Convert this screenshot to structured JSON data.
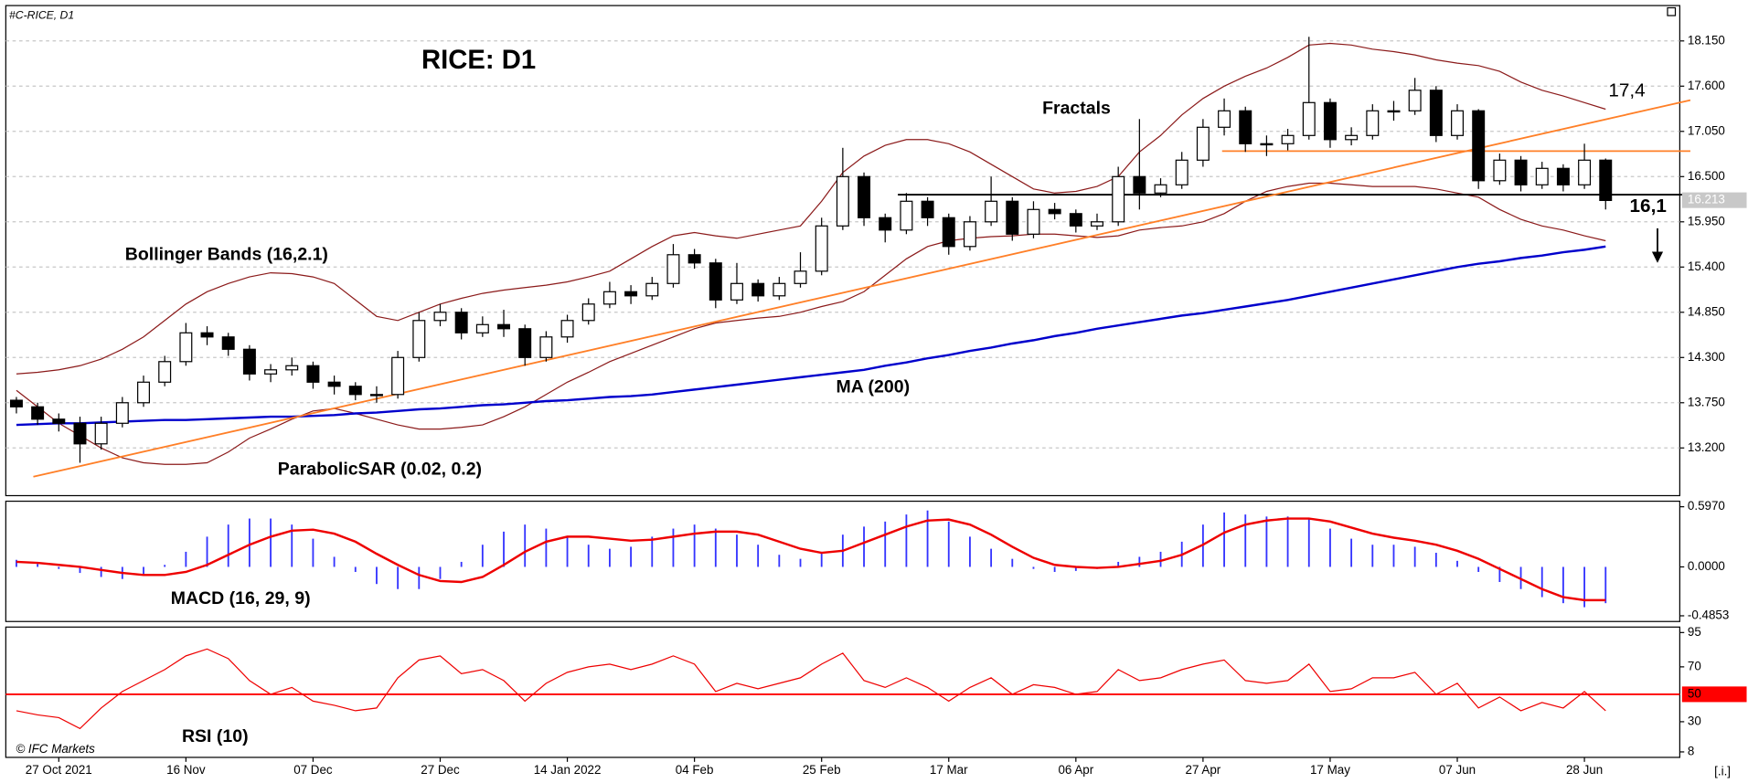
{
  "chart_data": [
    {
      "type": "candlestick",
      "subtitle": "#C-RICE, D1",
      "title": "RICE: D1",
      "categories": [
        null,
        null,
        "27 Oct 2021",
        null,
        null,
        null,
        null,
        null,
        "16 Nov",
        null,
        null,
        null,
        null,
        null,
        "07 Dec",
        null,
        null,
        null,
        null,
        null,
        "27 Dec",
        null,
        null,
        null,
        null,
        null,
        "14 Jan 2022",
        null,
        null,
        null,
        null,
        null,
        "04 Feb",
        null,
        null,
        null,
        null,
        null,
        "25 Feb",
        null,
        null,
        null,
        null,
        null,
        "17 Mar",
        null,
        null,
        null,
        null,
        null,
        "06 Apr",
        null,
        null,
        null,
        null,
        null,
        "27 Apr",
        null,
        null,
        null,
        null,
        null,
        "17 May",
        null,
        null,
        null,
        null,
        null,
        "07 Jun",
        null,
        null,
        null,
        null,
        null,
        "28 Jun",
        null
      ],
      "open": [
        13.78,
        13.7,
        13.55,
        13.5,
        13.25,
        13.5,
        13.75,
        14.0,
        14.25,
        14.6,
        14.55,
        14.4,
        14.1,
        14.15,
        14.2,
        14.0,
        13.95,
        13.85,
        13.85,
        14.3,
        14.75,
        14.85,
        14.6,
        14.7,
        14.65,
        14.3,
        14.55,
        14.75,
        14.95,
        15.1,
        15.05,
        15.2,
        15.55,
        15.45,
        15.0,
        15.2,
        15.05,
        15.2,
        15.35,
        15.9,
        16.5,
        16.0,
        15.85,
        16.2,
        16.0,
        15.65,
        15.95,
        16.2,
        15.8,
        16.1,
        16.05,
        15.9,
        15.95,
        16.5,
        16.3,
        16.4,
        16.7,
        17.1,
        17.3,
        16.9,
        16.9,
        17.0,
        17.4,
        16.95,
        17.0,
        17.3,
        17.3,
        17.55,
        17.0,
        17.3,
        16.45,
        16.7,
        16.4,
        16.6,
        16.4,
        16.7
      ],
      "high": [
        13.82,
        13.75,
        13.62,
        13.58,
        13.58,
        13.82,
        14.08,
        14.32,
        14.72,
        14.68,
        14.6,
        14.45,
        14.22,
        14.3,
        14.25,
        14.08,
        14.0,
        13.95,
        14.38,
        14.85,
        14.95,
        14.9,
        14.8,
        14.88,
        14.7,
        14.62,
        14.82,
        15.02,
        15.22,
        15.18,
        15.28,
        15.68,
        15.62,
        15.5,
        15.45,
        15.25,
        15.28,
        15.58,
        16.0,
        16.85,
        16.55,
        16.05,
        16.3,
        16.25,
        16.05,
        16.02,
        16.5,
        16.25,
        16.2,
        16.18,
        16.1,
        16.05,
        16.62,
        17.2,
        16.48,
        16.8,
        17.2,
        17.45,
        17.35,
        17.0,
        17.08,
        18.2,
        17.45,
        17.1,
        17.38,
        17.42,
        17.7,
        17.6,
        17.38,
        17.32,
        16.78,
        16.75,
        16.68,
        16.65,
        16.9,
        16.72
      ],
      "low": [
        13.62,
        13.48,
        13.4,
        13.02,
        13.18,
        13.45,
        13.7,
        13.95,
        14.2,
        14.45,
        14.32,
        14.02,
        14.0,
        14.08,
        13.92,
        13.85,
        13.78,
        13.75,
        13.8,
        14.25,
        14.68,
        14.52,
        14.55,
        14.55,
        14.2,
        14.25,
        14.48,
        14.7,
        14.9,
        14.95,
        15.0,
        15.15,
        15.38,
        14.9,
        14.95,
        14.98,
        15.0,
        15.15,
        15.3,
        15.85,
        15.9,
        15.7,
        15.8,
        15.9,
        15.55,
        15.6,
        15.9,
        15.72,
        15.75,
        15.98,
        15.82,
        15.85,
        15.9,
        16.1,
        16.25,
        16.35,
        16.62,
        17.0,
        16.8,
        16.75,
        16.82,
        16.95,
        16.85,
        16.88,
        16.95,
        17.18,
        17.25,
        16.92,
        16.95,
        16.35,
        16.4,
        16.32,
        16.35,
        16.32,
        16.35,
        16.1
      ],
      "close": [
        13.7,
        13.55,
        13.5,
        13.25,
        13.5,
        13.75,
        14.0,
        14.25,
        14.6,
        14.55,
        14.4,
        14.1,
        14.15,
        14.2,
        14.0,
        13.95,
        13.85,
        13.85,
        14.3,
        14.75,
        14.85,
        14.6,
        14.7,
        14.65,
        14.3,
        14.55,
        14.75,
        14.95,
        15.1,
        15.05,
        15.2,
        15.55,
        15.45,
        15.0,
        15.2,
        15.05,
        15.2,
        15.35,
        15.9,
        16.5,
        16.0,
        15.85,
        16.2,
        16.0,
        15.65,
        15.95,
        16.2,
        15.8,
        16.1,
        16.05,
        15.9,
        15.95,
        16.5,
        16.3,
        16.4,
        16.7,
        17.1,
        17.3,
        16.9,
        16.9,
        17.0,
        17.4,
        16.95,
        17.0,
        17.3,
        17.3,
        17.55,
        17.0,
        17.3,
        16.45,
        16.7,
        16.4,
        16.6,
        16.4,
        16.7,
        16.21
      ],
      "up_color": "#ffffff",
      "down_color": "#000000",
      "ylim": [
        12.62,
        18.58
      ],
      "yticks": [
        {
          "value": 18.15,
          "label": "18.150"
        },
        {
          "value": 17.6,
          "label": "17.600"
        },
        {
          "value": 17.05,
          "label": "17.050"
        },
        {
          "value": 16.5,
          "label": "16.500"
        },
        {
          "value": 15.95,
          "label": "15.950"
        },
        {
          "value": 15.4,
          "label": "15.400"
        },
        {
          "value": 14.85,
          "label": "14.850"
        },
        {
          "value": 14.3,
          "label": "14.300"
        },
        {
          "value": 13.75,
          "label": "13.750"
        },
        {
          "value": 13.2,
          "label": "13.200"
        }
      ],
      "grid": true,
      "series": [
        {
          "name": "MA (200)",
          "color": "#0000cc",
          "values": [
            13.48,
            13.49,
            13.5,
            13.5,
            13.51,
            13.52,
            13.53,
            13.54,
            13.54,
            13.55,
            13.56,
            13.57,
            13.58,
            13.58,
            13.59,
            13.6,
            13.62,
            13.63,
            13.65,
            13.67,
            13.68,
            13.7,
            13.72,
            13.73,
            13.75,
            13.77,
            13.78,
            13.8,
            13.82,
            13.83,
            13.85,
            13.88,
            13.91,
            13.94,
            13.97,
            14.0,
            14.03,
            14.06,
            14.09,
            14.12,
            14.15,
            14.2,
            14.24,
            14.29,
            14.33,
            14.38,
            14.42,
            14.47,
            14.51,
            14.56,
            14.6,
            14.65,
            14.69,
            14.73,
            14.77,
            14.81,
            14.84,
            14.88,
            14.92,
            14.96,
            15.0,
            15.05,
            15.1,
            15.15,
            15.2,
            15.25,
            15.3,
            15.35,
            15.4,
            15.44,
            15.47,
            15.51,
            15.54,
            15.58,
            15.61,
            15.65
          ]
        }
      ],
      "bands": {
        "name": "Bollinger Bands (16,2.1)",
        "color": "#8b1a1a",
        "upper": [
          14.1,
          14.12,
          14.15,
          14.2,
          14.28,
          14.4,
          14.55,
          14.75,
          14.95,
          15.1,
          15.2,
          15.28,
          15.33,
          15.32,
          15.28,
          15.2,
          15.0,
          14.8,
          14.75,
          14.85,
          14.95,
          15.02,
          15.08,
          15.12,
          15.15,
          15.18,
          15.22,
          15.28,
          15.35,
          15.5,
          15.65,
          15.78,
          15.82,
          15.78,
          15.75,
          15.8,
          15.85,
          15.9,
          16.2,
          16.55,
          16.75,
          16.88,
          16.95,
          16.95,
          16.9,
          16.8,
          16.65,
          16.5,
          16.35,
          16.3,
          16.32,
          16.38,
          16.5,
          16.8,
          17.0,
          17.25,
          17.45,
          17.6,
          17.72,
          17.82,
          17.95,
          18.1,
          18.12,
          18.1,
          18.05,
          18.02,
          17.98,
          17.92,
          17.88,
          17.85,
          17.78,
          17.65,
          17.55,
          17.48,
          17.4,
          17.32
        ],
        "lower": [
          13.9,
          13.7,
          13.5,
          13.35,
          13.2,
          13.08,
          13.02,
          13.0,
          13.0,
          13.02,
          13.15,
          13.32,
          13.43,
          13.55,
          13.65,
          13.68,
          13.62,
          13.55,
          13.48,
          13.43,
          13.43,
          13.45,
          13.48,
          13.58,
          13.7,
          13.85,
          14.0,
          14.12,
          14.25,
          14.35,
          14.45,
          14.55,
          14.65,
          14.72,
          14.75,
          14.78,
          14.8,
          14.85,
          14.92,
          14.98,
          15.1,
          15.3,
          15.5,
          15.65,
          15.72,
          15.75,
          15.77,
          15.78,
          15.8,
          15.8,
          15.78,
          15.76,
          15.78,
          15.85,
          15.88,
          15.9,
          15.95,
          16.05,
          16.2,
          16.32,
          16.38,
          16.42,
          16.42,
          16.4,
          16.38,
          16.38,
          16.38,
          16.35,
          16.3,
          16.25,
          16.1,
          15.98,
          15.9,
          15.85,
          15.78,
          15.72
        ]
      },
      "lines": [
        {
          "color": "#000000",
          "from": [
            41.6,
            16.28
          ],
          "to": [
            79,
            16.28
          ]
        },
        {
          "color": "#ff7f27",
          "from": [
            56.9,
            16.81
          ],
          "to": [
            79,
            16.81
          ]
        },
        {
          "color": "#ff7f27",
          "from": [
            0.8,
            12.85
          ],
          "to": [
            79,
            17.43
          ]
        }
      ],
      "annotations": [
        "Bollinger Bands (16,2.1)",
        "Fractals",
        "MA (200)",
        "ParabolicSAR (0.02, 0.2)",
        "17,4",
        "16,1"
      ],
      "last_price": {
        "value": 16.213,
        "label": "16.213"
      }
    },
    {
      "type": "macd",
      "name": "MACD (16, 29, 9)",
      "color": "#3333ff",
      "signal_color": "#ee0000",
      "histogram": [
        0.07,
        0.03,
        -0.02,
        -0.06,
        -0.1,
        -0.12,
        -0.08,
        0.02,
        0.15,
        0.3,
        0.42,
        0.48,
        0.48,
        0.42,
        0.28,
        0.1,
        -0.05,
        -0.17,
        -0.22,
        -0.22,
        -0.12,
        0.05,
        0.22,
        0.35,
        0.42,
        0.38,
        0.3,
        0.22,
        0.18,
        0.2,
        0.3,
        0.38,
        0.42,
        0.38,
        0.32,
        0.22,
        0.12,
        0.08,
        0.15,
        0.32,
        0.4,
        0.45,
        0.52,
        0.56,
        0.45,
        0.3,
        0.18,
        0.08,
        -0.02,
        -0.05,
        -0.04,
        -0.02,
        0.05,
        0.1,
        0.15,
        0.25,
        0.42,
        0.54,
        0.52,
        0.5,
        0.5,
        0.48,
        0.38,
        0.28,
        0.22,
        0.22,
        0.2,
        0.14,
        0.06,
        -0.05,
        -0.15,
        -0.22,
        -0.3,
        -0.36,
        -0.4,
        -0.36
      ],
      "signal": [
        0.05,
        0.04,
        0.02,
        0.0,
        -0.03,
        -0.06,
        -0.08,
        -0.08,
        -0.05,
        0.02,
        0.12,
        0.22,
        0.3,
        0.36,
        0.37,
        0.33,
        0.25,
        0.13,
        0.02,
        -0.08,
        -0.14,
        -0.15,
        -0.1,
        0.02,
        0.15,
        0.25,
        0.3,
        0.3,
        0.28,
        0.26,
        0.27,
        0.3,
        0.33,
        0.35,
        0.35,
        0.32,
        0.25,
        0.18,
        0.14,
        0.16,
        0.24,
        0.32,
        0.4,
        0.46,
        0.47,
        0.42,
        0.32,
        0.2,
        0.09,
        0.02,
        0.0,
        -0.01,
        0.0,
        0.03,
        0.06,
        0.12,
        0.22,
        0.34,
        0.42,
        0.46,
        0.48,
        0.48,
        0.45,
        0.39,
        0.33,
        0.29,
        0.26,
        0.22,
        0.16,
        0.08,
        -0.02,
        -0.12,
        -0.22,
        -0.3,
        -0.33,
        -0.33
      ],
      "ylim": [
        -0.542,
        0.652
      ],
      "yticks": [
        {
          "value": 0.597,
          "label": "0.5970"
        },
        {
          "value": 0,
          "label": "0.0000"
        },
        {
          "value": -0.4853,
          "label": "-0.4853"
        }
      ]
    },
    {
      "type": "line",
      "name": "RSI (10)",
      "color": "#ee0000",
      "values": [
        38,
        35,
        33,
        25,
        40,
        52,
        60,
        68,
        78,
        83,
        76,
        60,
        50,
        55,
        45,
        42,
        38,
        40,
        62,
        75,
        78,
        65,
        68,
        60,
        45,
        58,
        66,
        70,
        72,
        68,
        72,
        78,
        72,
        52,
        58,
        54,
        58,
        62,
        72,
        80,
        60,
        55,
        62,
        55,
        45,
        55,
        62,
        50,
        57,
        55,
        50,
        52,
        68,
        60,
        62,
        68,
        72,
        75,
        60,
        58,
        60,
        72,
        52,
        54,
        62,
        62,
        66,
        50,
        58,
        40,
        48,
        38,
        44,
        40,
        52,
        38
      ],
      "ylim": [
        4,
        99
      ],
      "yticks": [
        95,
        70,
        30,
        8
      ],
      "level": 50,
      "level_color": "#ff0000"
    }
  ],
  "footer": {
    "copyright": "© IFC Markets",
    "menu": "[.i.]"
  }
}
